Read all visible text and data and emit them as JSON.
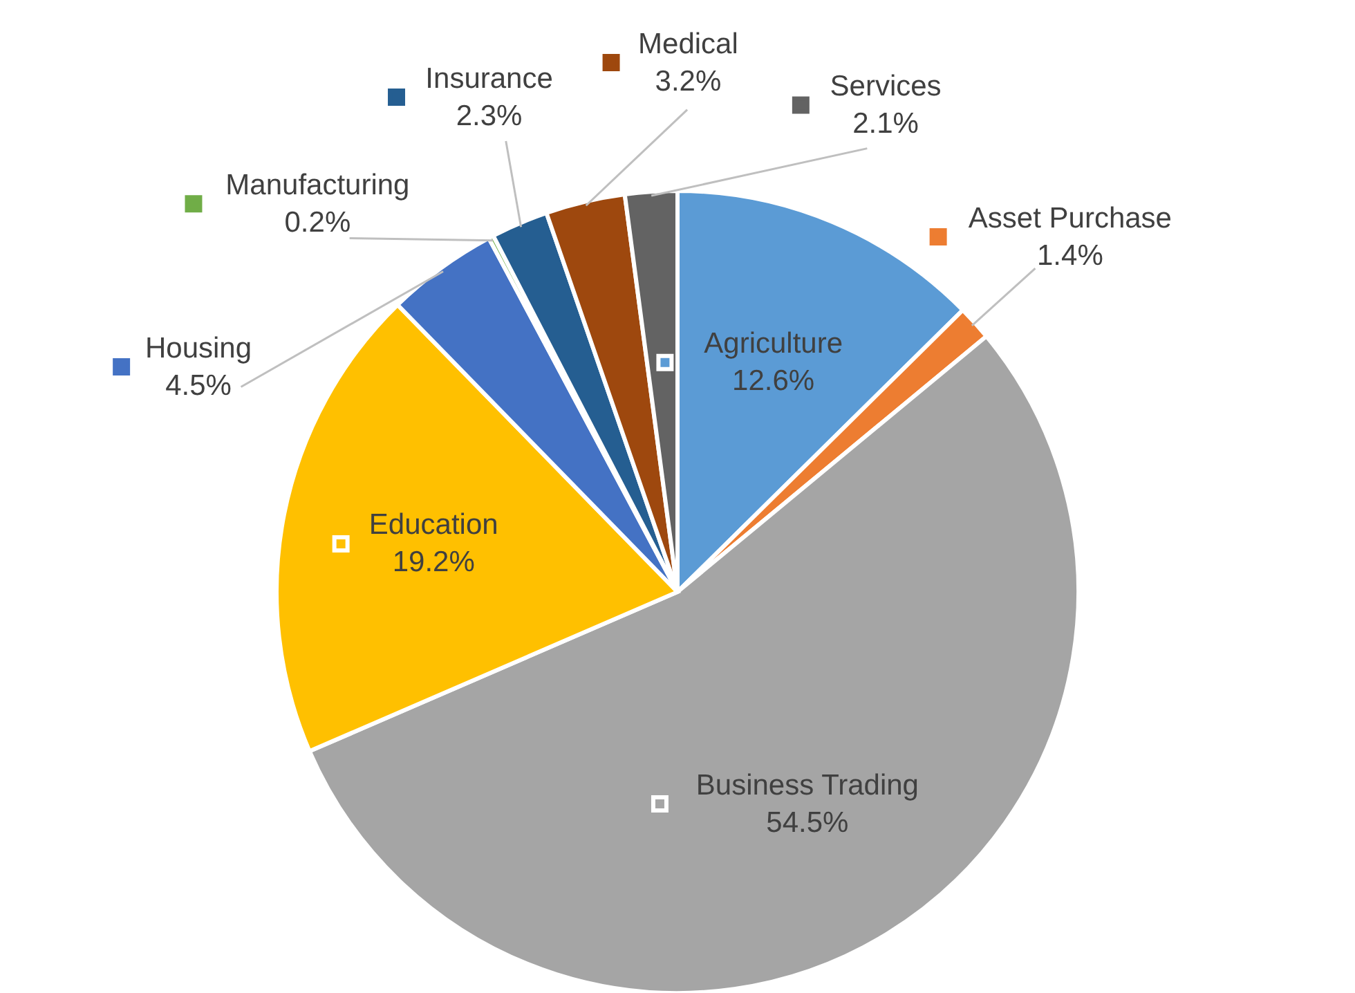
{
  "chart_data": {
    "type": "pie",
    "categories": [
      "Agriculture",
      "Asset Purchase",
      "Business Trading",
      "Education",
      "Housing",
      "Manufacturing",
      "Insurance",
      "Medical",
      "Services"
    ],
    "values": [
      12.6,
      1.4,
      54.5,
      19.2,
      4.5,
      0.2,
      2.3,
      3.2,
      2.1
    ],
    "value_labels": [
      "12.6%",
      "1.4%",
      "54.5%",
      "19.2%",
      "4.5%",
      "0.2%",
      "2.3%",
      "3.2%",
      "2.1%"
    ],
    "colors": [
      "#5b9bd5",
      "#ed7d31",
      "#a5a5a5",
      "#ffc000",
      "#4472c4",
      "#70ad47",
      "#255e91",
      "#9e480e",
      "#636363"
    ],
    "legend": "top"
  }
}
